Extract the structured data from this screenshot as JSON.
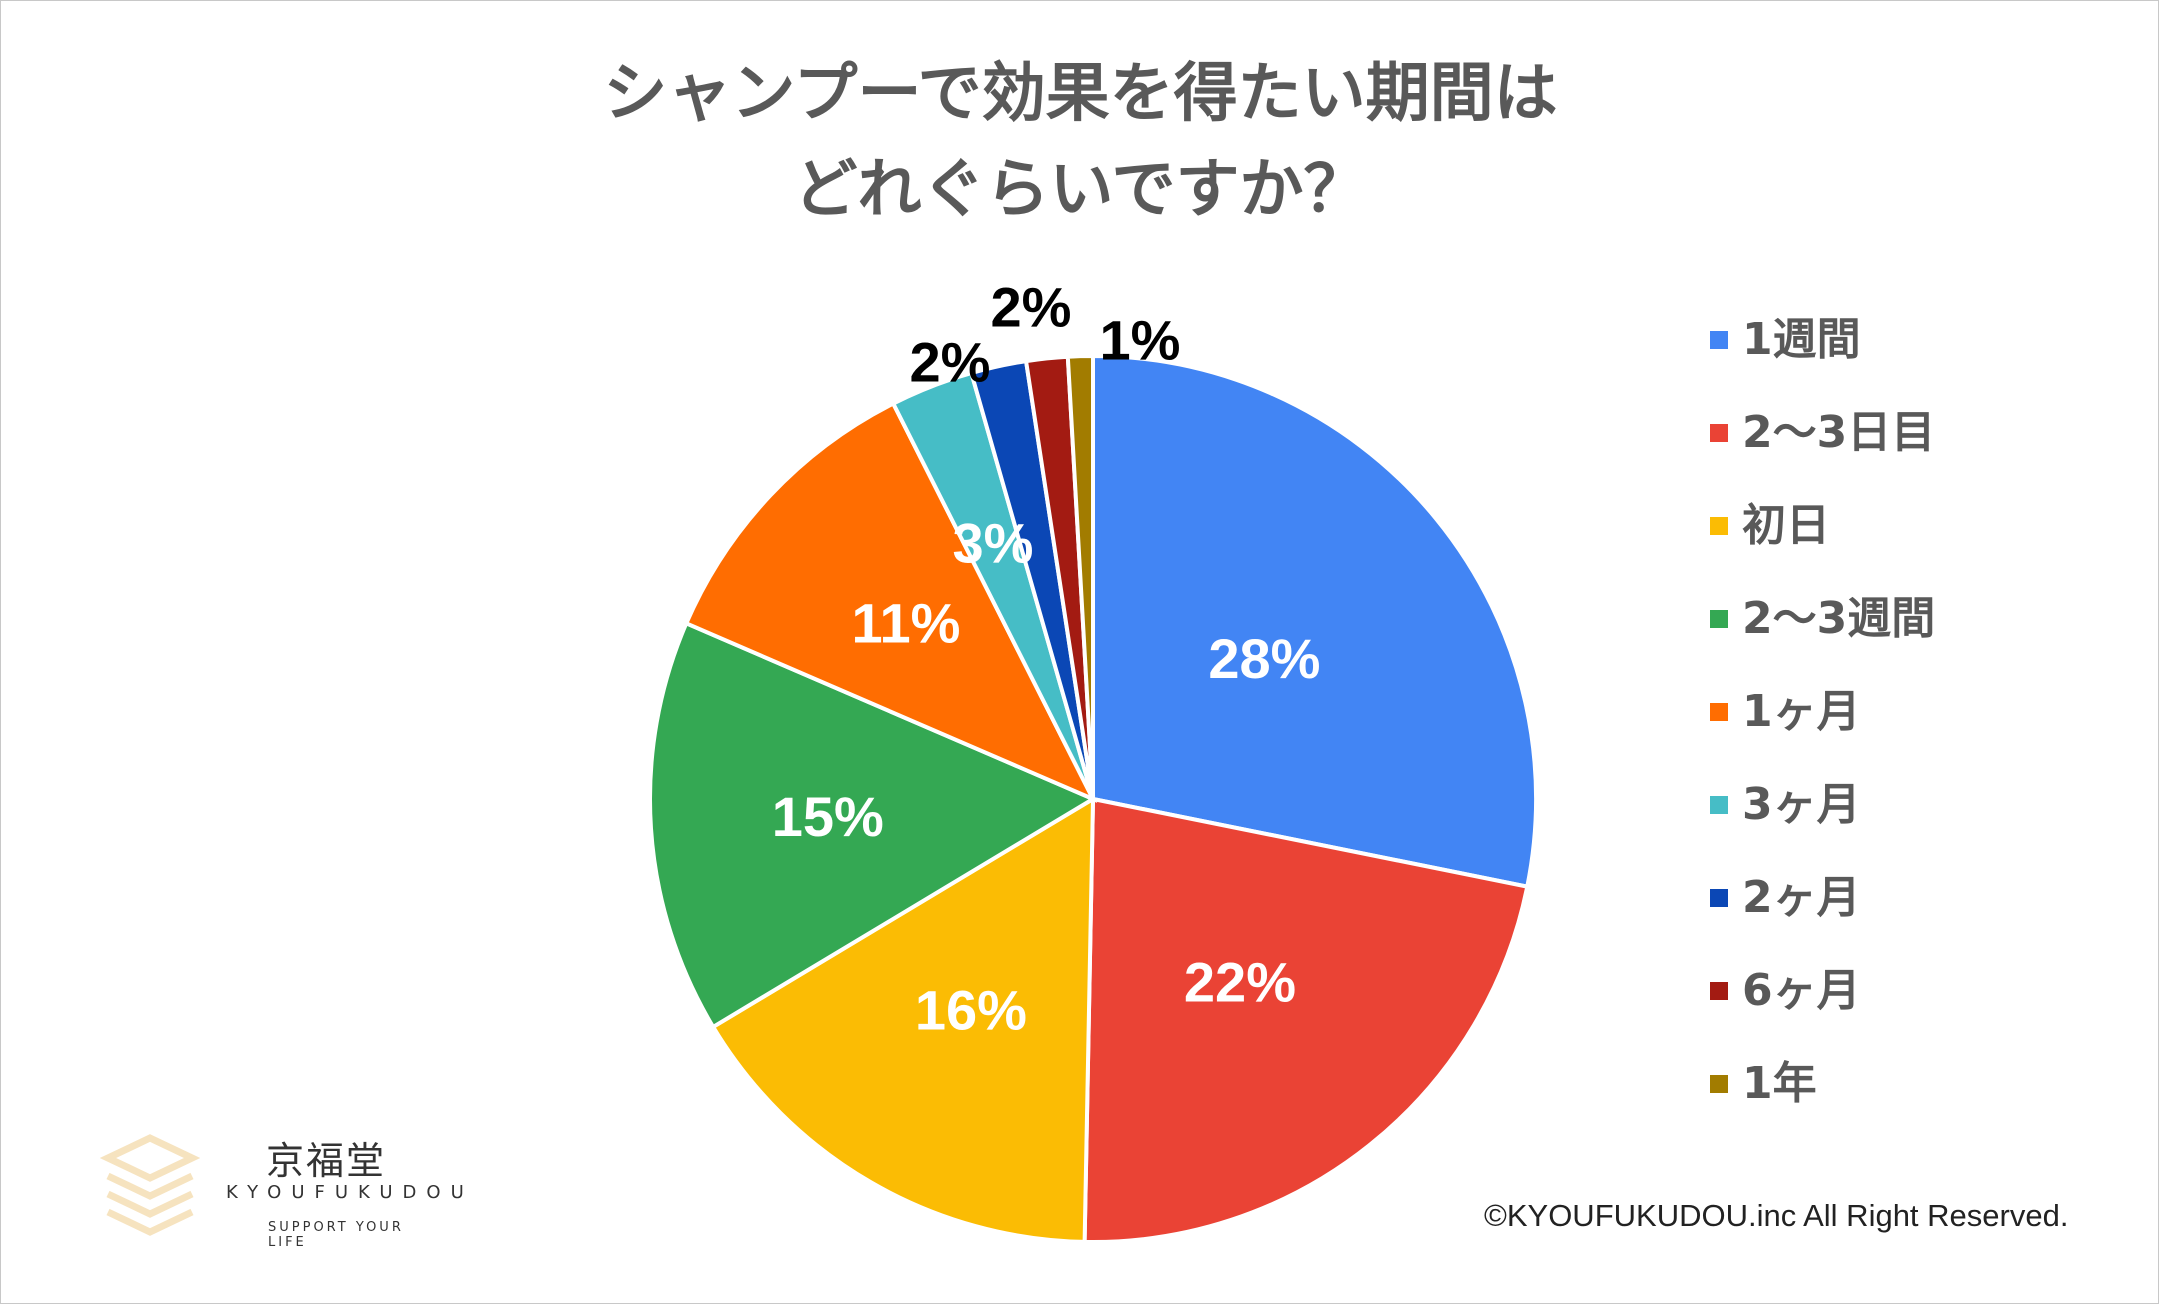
{
  "title_line1": "シャンプーで効果を得たい期間は",
  "title_line2": "どれぐらいですか？",
  "chart_data": {
    "type": "pie",
    "title": "シャンプーで効果を得たい期間はどれぐらいですか？",
    "legend_position": "right",
    "slices": [
      {
        "label": "1週間",
        "value": 28,
        "display": "28%",
        "color": "#4285F4"
      },
      {
        "label": "2～3日目",
        "value": 22,
        "display": "22%",
        "color": "#EA4335"
      },
      {
        "label": "初日",
        "value": 16,
        "display": "16%",
        "color": "#FBBC04"
      },
      {
        "label": "2～3週間",
        "value": 15,
        "display": "15%",
        "color": "#34A853"
      },
      {
        "label": "1ヶ月",
        "value": 11,
        "display": "11%",
        "color": "#FF6D01"
      },
      {
        "label": "3ヶ月",
        "value": 3,
        "display": "3%",
        "color": "#46BDC6"
      },
      {
        "label": "2ヶ月",
        "value": 2,
        "display": "2%",
        "color": "#0B47B5"
      },
      {
        "label": "6ヶ月",
        "value": 1.5,
        "display": "2%",
        "color": "#A31B12"
      },
      {
        "label": "1年",
        "value": 0.9,
        "display": "1%",
        "color": "#A27C00"
      }
    ]
  },
  "logo": {
    "name": "京福堂",
    "name_en": "KYOUFUKUDOU",
    "tagline": "SUPPORT YOUR LIFE"
  },
  "copyright": "©KYOUFUKUDOU.inc All Right Reserved."
}
